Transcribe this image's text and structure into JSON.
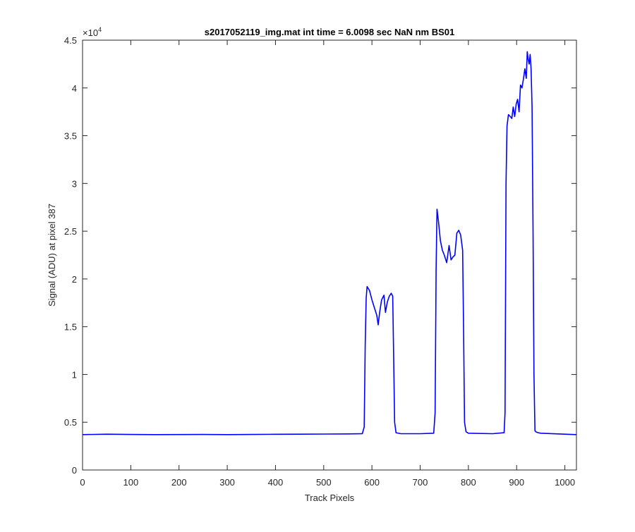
{
  "chart_data": {
    "type": "line",
    "title": "s2017052119_img.mat int time = 6.0098 sec  NaN nm BS01",
    "xlabel": "Track Pixels",
    "ylabel": "Signal (ADU) at pixel 387",
    "xlim": [
      0,
      1024
    ],
    "ylim": [
      0,
      45000
    ],
    "y_exponent_label": "×10",
    "y_exponent_power": "4",
    "xticks": [
      0,
      100,
      200,
      300,
      400,
      500,
      600,
      700,
      800,
      900,
      1000
    ],
    "xtick_labels": [
      "0",
      "100",
      "200",
      "300",
      "400",
      "500",
      "600",
      "700",
      "800",
      "900",
      "1000"
    ],
    "yticks": [
      0,
      5000,
      10000,
      15000,
      20000,
      25000,
      30000,
      35000,
      40000,
      45000
    ],
    "ytick_labels": [
      "0",
      "0.5",
      "1",
      "1.5",
      "2",
      "2.5",
      "3",
      "3.5",
      "4",
      "4.5"
    ],
    "grid": false,
    "line_color": "#0000ff",
    "series": [
      {
        "x": [
          0,
          50,
          100,
          150,
          200,
          250,
          300,
          350,
          400,
          450,
          500,
          550,
          580,
          584,
          586,
          588,
          590,
          595,
          600,
          605,
          610,
          613,
          616,
          620,
          625,
          628,
          632,
          636,
          640,
          643,
          645,
          647,
          650,
          660,
          700,
          728,
          731,
          733,
          735,
          738,
          742,
          746,
          750,
          755,
          760,
          764,
          768,
          772,
          776,
          780,
          784,
          788,
          790,
          792,
          795,
          800,
          850,
          874,
          876,
          878,
          880,
          883,
          887,
          890,
          893,
          896,
          899,
          902,
          905,
          908,
          911,
          914,
          917,
          920,
          922,
          924,
          926,
          928,
          930,
          932,
          934,
          936,
          938,
          940,
          942,
          945,
          950,
          1000,
          1024
        ],
        "y": [
          3700,
          3750,
          3720,
          3700,
          3710,
          3720,
          3700,
          3720,
          3740,
          3750,
          3760,
          3780,
          3800,
          4500,
          13000,
          18000,
          19200,
          18800,
          17800,
          17000,
          16200,
          15200,
          16500,
          17800,
          18300,
          16500,
          17600,
          18200,
          18500,
          18200,
          12000,
          5000,
          3900,
          3800,
          3800,
          3850,
          6000,
          21000,
          27300,
          26000,
          24000,
          23000,
          22500,
          21700,
          23500,
          22000,
          22300,
          22500,
          24800,
          25100,
          24600,
          23000,
          15000,
          5000,
          4000,
          3850,
          3800,
          3900,
          6000,
          30000,
          36000,
          37200,
          37000,
          36800,
          38000,
          37000,
          38300,
          38800,
          37500,
          40300,
          40000,
          40900,
          42000,
          41000,
          43800,
          43000,
          42500,
          43500,
          42000,
          38000,
          25000,
          10000,
          4100,
          4000,
          3950,
          3900,
          3850,
          3750,
          3700
        ]
      }
    ]
  }
}
